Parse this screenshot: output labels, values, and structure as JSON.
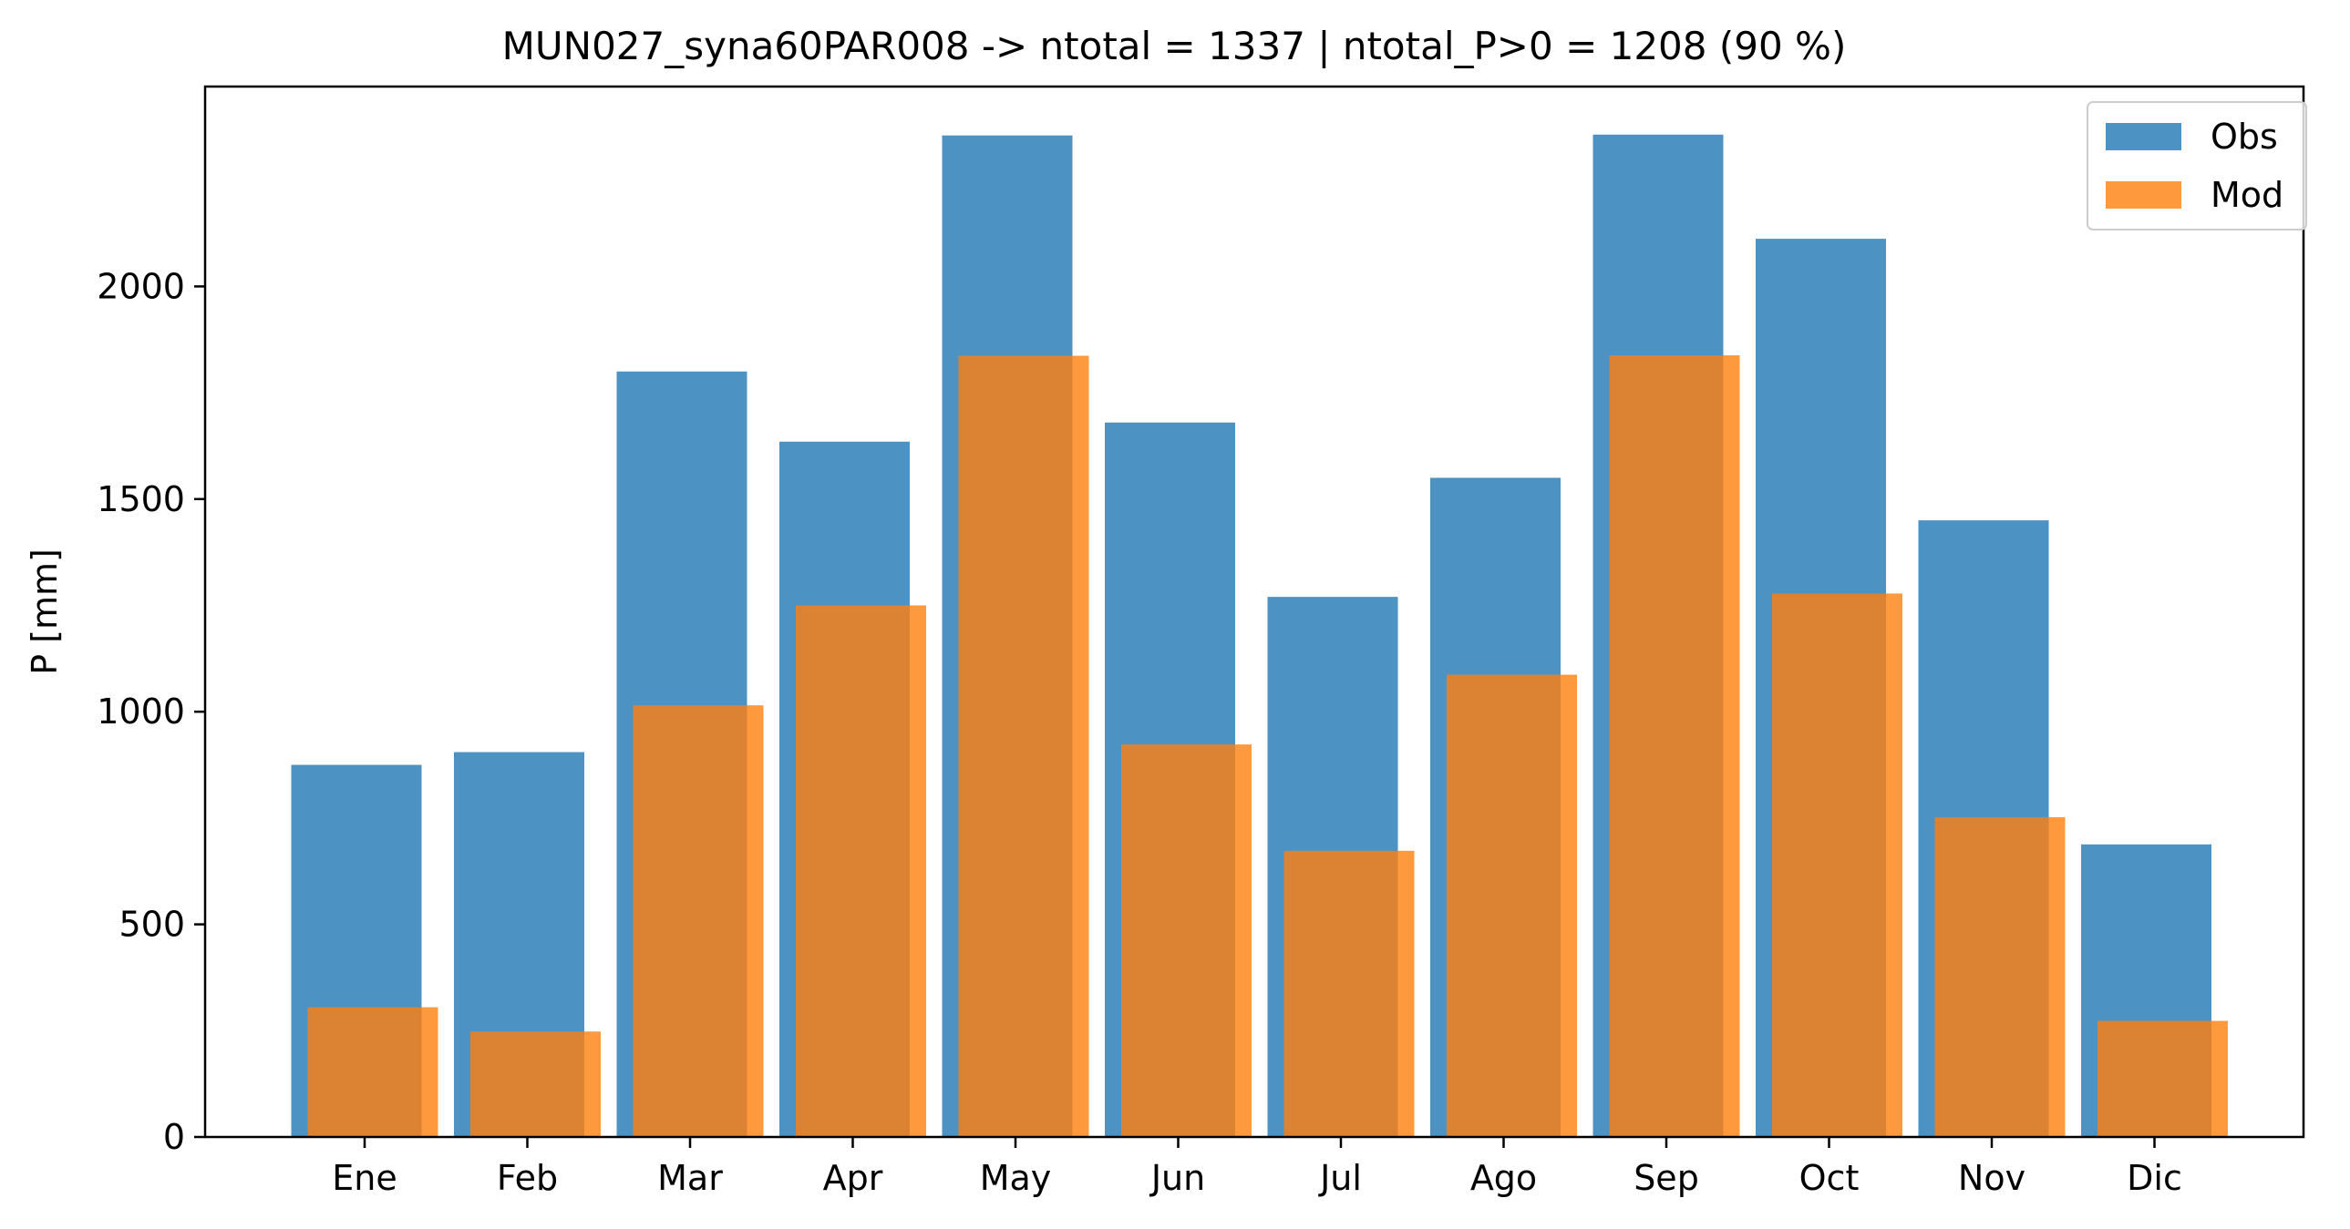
{
  "chart_data": {
    "type": "bar",
    "title": "MUN027_syna60PAR008 -> ntotal = 1337 | ntotal_P>0 = 1208 (90 %)",
    "xlabel": "",
    "ylabel": "P [mm]",
    "categories": [
      "Ene",
      "Feb",
      "Mar",
      "Apr",
      "May",
      "Jun",
      "Jul",
      "Ago",
      "Sep",
      "Oct",
      "Nov",
      "Dic"
    ],
    "series": [
      {
        "name": "Obs",
        "color": "#1f77b4",
        "opacity": 0.8,
        "values": [
          875,
          905,
          1800,
          1635,
          2355,
          1680,
          1270,
          1550,
          2357,
          2112,
          1450,
          688
        ]
      },
      {
        "name": "Mod",
        "color": "#ff7f0e",
        "opacity": 0.8,
        "values": [
          305,
          248,
          1015,
          1250,
          1837,
          923,
          673,
          1087,
          1838,
          1278,
          752,
          273
        ]
      }
    ],
    "ylim": [
      0,
      2470
    ],
    "yticks": [
      0,
      500,
      1000,
      1500,
      2000
    ],
    "grid": false,
    "legend": "top-right"
  }
}
